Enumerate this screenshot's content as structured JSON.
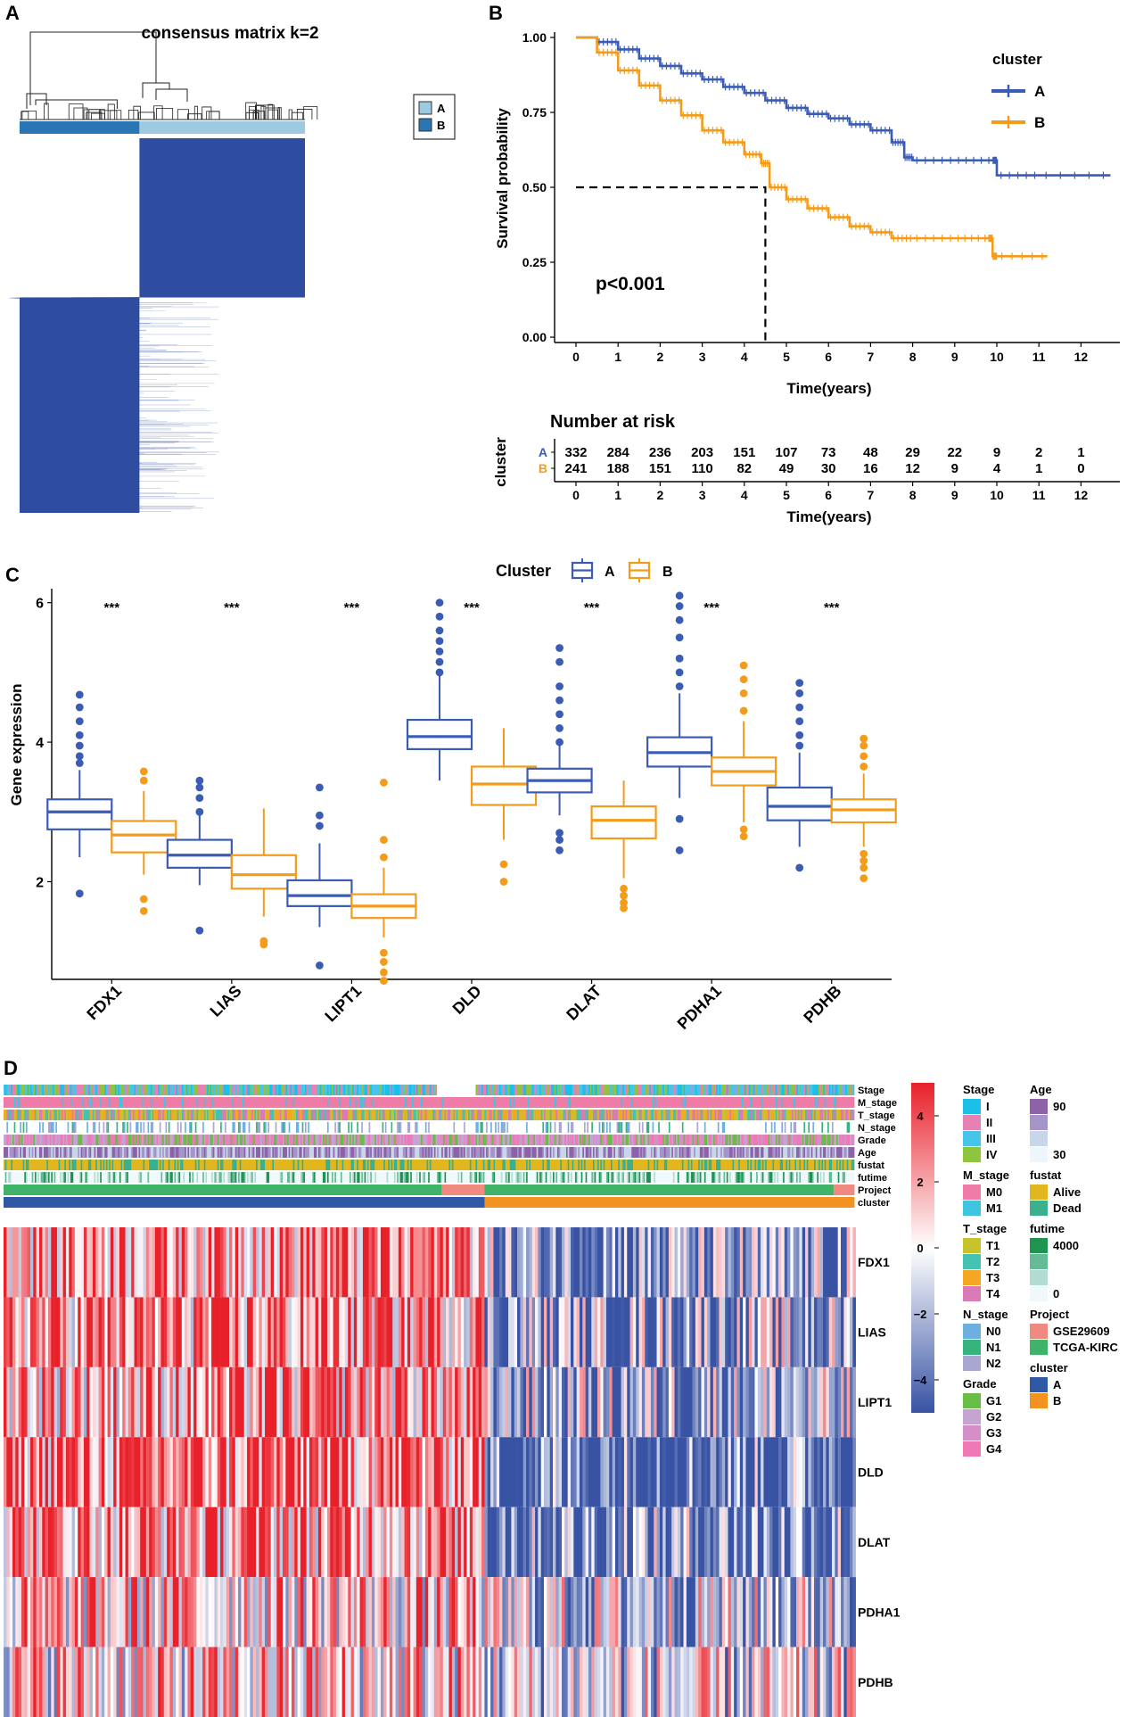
{
  "colors": {
    "cluster_A": "#3b5cb4",
    "cluster_B": "#f39c1c",
    "consensus_A": "#9ecae1",
    "consensus_B": "#2a75b3",
    "matrix": "#2e4da1",
    "heat_high": "#e8202a",
    "heat_mid": "#ffffff",
    "heat_low": "#3953a4"
  },
  "panels": {
    "A": {
      "label": "A",
      "title": "consensus matrix k=2",
      "legend": [
        "A",
        "B"
      ],
      "cluster_fractions": {
        "B": 0.42,
        "A": 0.58
      }
    },
    "B": {
      "label": "B",
      "chart_data": {
        "type": "line",
        "subtype": "kaplan-meier",
        "xlabel": "Time(years)",
        "ylabel": "Survival probability",
        "xlim": [
          0,
          12.5
        ],
        "ylim": [
          0,
          1
        ],
        "xticks": [
          0,
          1,
          2,
          3,
          4,
          5,
          6,
          7,
          8,
          9,
          10,
          11,
          12
        ],
        "yticks": [
          "0.00",
          "0.25",
          "0.50",
          "0.75",
          "1.00"
        ],
        "pvalue": "p<0.001",
        "median_line": {
          "y": 0.5,
          "x": 4.5
        },
        "legend_title": "cluster",
        "series": [
          {
            "name": "A",
            "points": [
              [
                0,
                1.0
              ],
              [
                0.5,
                0.985
              ],
              [
                1,
                0.96
              ],
              [
                1.5,
                0.93
              ],
              [
                2,
                0.905
              ],
              [
                2.5,
                0.88
              ],
              [
                3,
                0.86
              ],
              [
                3.5,
                0.835
              ],
              [
                4,
                0.815
              ],
              [
                4.5,
                0.79
              ],
              [
                5,
                0.765
              ],
              [
                5.5,
                0.745
              ],
              [
                6,
                0.73
              ],
              [
                6.5,
                0.71
              ],
              [
                7,
                0.69
              ],
              [
                7.5,
                0.65
              ],
              [
                7.8,
                0.6
              ],
              [
                8,
                0.59
              ],
              [
                9,
                0.59
              ],
              [
                9.9,
                0.59
              ],
              [
                10,
                0.54
              ],
              [
                11,
                0.54
              ],
              [
                12.7,
                0.54
              ]
            ]
          },
          {
            "name": "B",
            "points": [
              [
                0,
                1.0
              ],
              [
                0.5,
                0.95
              ],
              [
                1,
                0.89
              ],
              [
                1.5,
                0.84
              ],
              [
                2,
                0.79
              ],
              [
                2.5,
                0.74
              ],
              [
                3,
                0.69
              ],
              [
                3.5,
                0.65
              ],
              [
                4,
                0.61
              ],
              [
                4.4,
                0.58
              ],
              [
                4.6,
                0.5
              ],
              [
                5,
                0.46
              ],
              [
                5.5,
                0.43
              ],
              [
                6,
                0.4
              ],
              [
                6.5,
                0.37
              ],
              [
                7,
                0.35
              ],
              [
                7.5,
                0.33
              ],
              [
                8,
                0.33
              ],
              [
                9,
                0.33
              ],
              [
                9.8,
                0.33
              ],
              [
                9.9,
                0.27
              ],
              [
                10,
                0.27
              ],
              [
                11.2,
                0.27
              ]
            ]
          }
        ],
        "risk_table": {
          "title": "Number at risk",
          "ylabel": "cluster",
          "rows": [
            {
              "name": "A",
              "values": [
                "332",
                "284",
                "236",
                "203",
                "151",
                "107",
                "73",
                "48",
                "29",
                "22",
                "9",
                "2",
                "1"
              ]
            },
            {
              "name": "B",
              "values": [
                "241",
                "188",
                "151",
                "110",
                "82",
                "49",
                "30",
                "16",
                "12",
                "9",
                "4",
                "1",
                "0"
              ]
            }
          ]
        }
      }
    },
    "C": {
      "label": "C",
      "chart_data": {
        "type": "box",
        "legend_title": "Cluster",
        "legend": [
          "A",
          "B"
        ],
        "ylabel": "Gene expression",
        "ylim": [
          0.6,
          6.2
        ],
        "yticks": [
          2,
          4,
          6
        ],
        "significance": "***",
        "categories": [
          "FDX1",
          "LIAS",
          "LIPT1",
          "DLD",
          "DLAT",
          "PDHA1",
          "PDHB"
        ],
        "series": [
          {
            "name": "A",
            "boxes": [
              {
                "min": 2.35,
                "q1": 2.75,
                "median": 3.0,
                "q3": 3.18,
                "max": 3.6,
                "outliers": [
                  1.83,
                  3.7,
                  3.8,
                  3.95,
                  4.1,
                  4.3,
                  4.5,
                  4.68
                ]
              },
              {
                "min": 1.95,
                "q1": 2.2,
                "median": 2.38,
                "q3": 2.6,
                "max": 2.95,
                "outliers": [
                  1.3,
                  3.0,
                  3.2,
                  3.35,
                  3.45
                ]
              },
              {
                "min": 1.35,
                "q1": 1.65,
                "median": 1.8,
                "q3": 2.02,
                "max": 2.55,
                "outliers": [
                  0.8,
                  2.8,
                  2.95,
                  3.35
                ]
              },
              {
                "min": 3.45,
                "q1": 3.9,
                "median": 4.08,
                "q3": 4.32,
                "max": 4.95,
                "outliers": [
                  5.0,
                  5.15,
                  5.3,
                  5.45,
                  5.6,
                  5.8,
                  6.0
                ]
              },
              {
                "min": 2.95,
                "q1": 3.28,
                "median": 3.45,
                "q3": 3.62,
                "max": 3.95,
                "outliers": [
                  2.45,
                  2.6,
                  2.7,
                  4.0,
                  4.2,
                  4.4,
                  4.6,
                  4.8,
                  5.15,
                  5.35
                ]
              },
              {
                "min": 3.2,
                "q1": 3.65,
                "median": 3.85,
                "q3": 4.07,
                "max": 4.7,
                "outliers": [
                  2.45,
                  2.9,
                  4.8,
                  5.0,
                  5.2,
                  5.5,
                  5.75,
                  5.95,
                  6.1
                ]
              },
              {
                "min": 2.5,
                "q1": 2.88,
                "median": 3.08,
                "q3": 3.35,
                "max": 3.85,
                "outliers": [
                  2.2,
                  3.95,
                  4.1,
                  4.3,
                  4.5,
                  4.7,
                  4.85
                ]
              }
            ]
          },
          {
            "name": "B",
            "boxes": [
              {
                "min": 2.1,
                "q1": 2.42,
                "median": 2.67,
                "q3": 2.87,
                "max": 3.3,
                "outliers": [
                  1.58,
                  1.75,
                  3.45,
                  3.58
                ]
              },
              {
                "min": 1.5,
                "q1": 1.9,
                "median": 2.1,
                "q3": 2.38,
                "max": 3.05,
                "outliers": [
                  1.1,
                  1.15
                ]
              },
              {
                "min": 1.2,
                "q1": 1.48,
                "median": 1.65,
                "q3": 1.82,
                "max": 2.2,
                "outliers": [
                  0.58,
                  0.7,
                  0.85,
                  0.98,
                  2.35,
                  2.6,
                  3.42
                ]
              },
              {
                "min": 2.6,
                "q1": 3.1,
                "median": 3.4,
                "q3": 3.65,
                "max": 4.2,
                "outliers": [
                  2.0,
                  2.25
                ]
              },
              {
                "min": 2.05,
                "q1": 2.62,
                "median": 2.88,
                "q3": 3.08,
                "max": 3.45,
                "outliers": [
                  1.62,
                  1.7,
                  1.8,
                  1.9
                ]
              },
              {
                "min": 2.85,
                "q1": 3.38,
                "median": 3.58,
                "q3": 3.78,
                "max": 4.3,
                "outliers": [
                  2.65,
                  2.75,
                  4.45,
                  4.7,
                  4.9,
                  5.1
                ]
              },
              {
                "min": 2.5,
                "q1": 2.85,
                "median": 3.03,
                "q3": 3.18,
                "max": 3.55,
                "outliers": [
                  2.05,
                  2.2,
                  2.3,
                  2.4,
                  3.65,
                  3.8,
                  3.95,
                  4.05
                ]
              }
            ]
          }
        ]
      }
    },
    "D": {
      "label": "D",
      "chart_data": {
        "type": "heatmap",
        "rows": [
          "FDX1",
          "LIAS",
          "LIPT1",
          "DLD",
          "DLAT",
          "PDHA1",
          "PDHB"
        ],
        "row_bias_cluster_A": [
          0.55,
          0.5,
          0.45,
          0.6,
          0.5,
          0.2,
          0.15
        ],
        "row_bias_cluster_B": [
          -0.55,
          -0.45,
          -0.4,
          -0.7,
          -0.55,
          -0.25,
          -0.15
        ],
        "annotation_tracks": [
          "Stage",
          "M_stage",
          "T_stage",
          "N_stage",
          "Grade",
          "Age",
          "fustat",
          "futime",
          "Project",
          "cluster"
        ],
        "cluster_split": 0.565,
        "n_samples": 573,
        "colorbar": {
          "ticks": [
            "4",
            "2",
            "0",
            "−2",
            "−4"
          ],
          "values": [
            4,
            2,
            0,
            -2,
            -4
          ],
          "range": [
            -5,
            5
          ]
        },
        "legends_col1": [
          {
            "title": "Stage",
            "items": [
              {
                "label": "I",
                "color": "#1bc0e9"
              },
              {
                "label": "II",
                "color": "#e681b4"
              },
              {
                "label": "III",
                "color": "#47c4ea"
              },
              {
                "label": "IV",
                "color": "#8fc43f"
              }
            ]
          },
          {
            "title": "M_stage",
            "items": [
              {
                "label": "M0",
                "color": "#ee7ca7"
              },
              {
                "label": "M1",
                "color": "#3fc4e0"
              }
            ]
          },
          {
            "title": "T_stage",
            "items": [
              {
                "label": "T1",
                "color": "#c8c22c"
              },
              {
                "label": "T2",
                "color": "#45c2b2"
              },
              {
                "label": "T3",
                "color": "#f5a623"
              },
              {
                "label": "T4",
                "color": "#d97bb6"
              }
            ]
          },
          {
            "title": "N_stage",
            "items": [
              {
                "label": "N0",
                "color": "#6dafe0"
              },
              {
                "label": "N1",
                "color": "#35b57d"
              },
              {
                "label": "N2",
                "color": "#a9a7d2"
              }
            ]
          },
          {
            "title": "Grade",
            "items": [
              {
                "label": "G1",
                "color": "#67bd45"
              },
              {
                "label": "G2",
                "color": "#c5a4d2"
              },
              {
                "label": "G3",
                "color": "#d68ec8"
              },
              {
                "label": "G4",
                "color": "#ef79b4"
              }
            ]
          }
        ],
        "legends_col2": [
          {
            "title": "Age",
            "items": [
              {
                "label": "90",
                "color": "#8e62a8"
              },
              {
                "label": "",
                "color": "#a594c8"
              },
              {
                "label": "",
                "color": "#c8d6ea"
              },
              {
                "label": "30",
                "color": "#eef6fb"
              }
            ]
          },
          {
            "title": "fustat",
            "items": [
              {
                "label": "Alive",
                "color": "#e2b61e"
              },
              {
                "label": "Dead",
                "color": "#3ab08e"
              }
            ]
          },
          {
            "title": "futime",
            "items": [
              {
                "label": "4000",
                "color": "#1f9450"
              },
              {
                "label": "",
                "color": "#64bb95"
              },
              {
                "label": "",
                "color": "#b2dcd2"
              },
              {
                "label": "0",
                "color": "#eff8fb"
              }
            ]
          },
          {
            "title": "Project",
            "items": [
              {
                "label": "GSE29609",
                "color": "#f08a80"
              },
              {
                "label": "TCGA-KIRC",
                "color": "#40b36a"
              }
            ]
          },
          {
            "title": "cluster",
            "items": [
              {
                "label": "A",
                "color": "#2f59a4"
              },
              {
                "label": "B",
                "color": "#f39220"
              }
            ]
          }
        ]
      }
    }
  }
}
